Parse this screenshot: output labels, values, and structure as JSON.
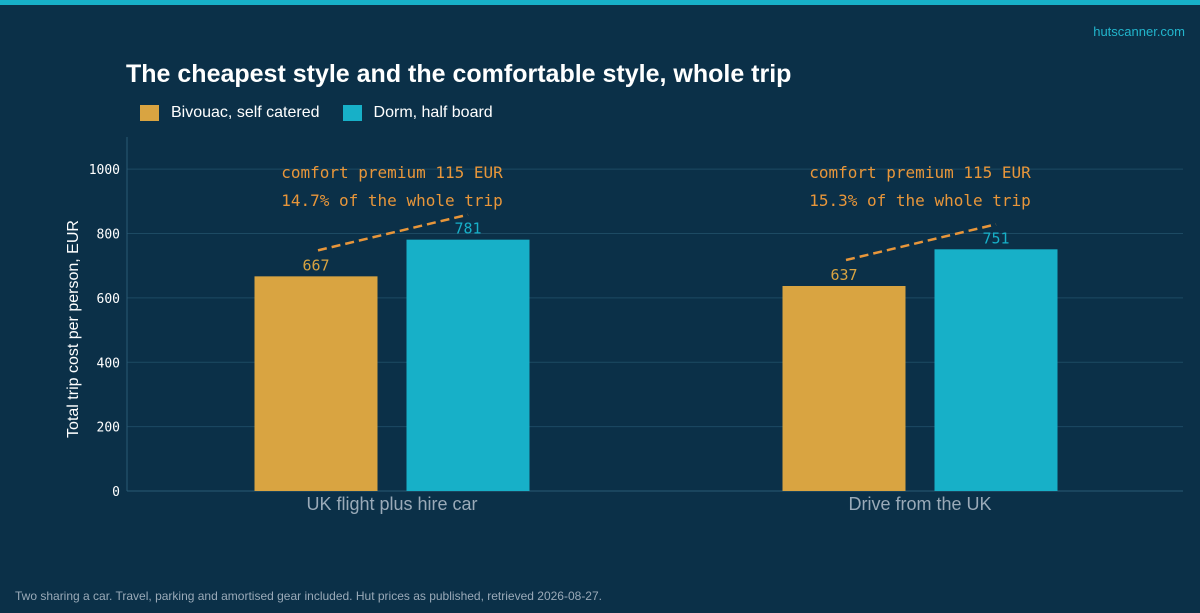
{
  "header": {
    "brand": "hutscanner.com"
  },
  "footer": {
    "note": "Two sharing a car. Travel, parking and amortised gear included. Hut prices as published, retrieved 2026-08-27."
  },
  "colors": {
    "background": "#0b3048",
    "accent_strip": "#17b0c8",
    "bivouac": "#d9a441",
    "dorm": "#17b0c8",
    "annotation": "#e8963a",
    "gridline": "#1d4a63"
  },
  "chart_data": {
    "type": "bar",
    "title": "The cheapest style and the comfortable style, whole trip",
    "ylabel": "Total trip cost per person, EUR",
    "xlabel": "",
    "ylim": [
      0,
      1100
    ],
    "yticks": [
      0,
      200,
      400,
      600,
      800,
      1000
    ],
    "grid": true,
    "legend_position": "top-left",
    "categories": [
      "UK flight plus hire car",
      "Drive from the UK"
    ],
    "series": [
      {
        "name": "Bivouac, self catered",
        "values": [
          667,
          637
        ],
        "value_labels": [
          "667",
          "637"
        ]
      },
      {
        "name": "Dorm, half board",
        "values": [
          781,
          751
        ],
        "value_labels": [
          "781",
          "751"
        ]
      }
    ],
    "annotations": [
      {
        "line1": "comfort premium  115 EUR",
        "line2": "14.7% of the whole trip"
      },
      {
        "line1": "comfort premium  115 EUR",
        "line2": "15.3% of the whole trip"
      }
    ]
  }
}
